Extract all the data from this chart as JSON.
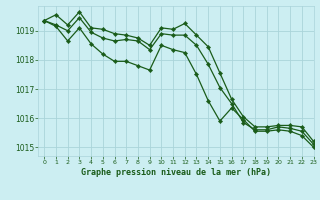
{
  "title": "Graphe pression niveau de la mer (hPa)",
  "bg_color": "#cceef2",
  "grid_color": "#aad4da",
  "line_color": "#1a5c1a",
  "xlim": [
    -0.5,
    23
  ],
  "ylim": [
    1014.7,
    1019.85
  ],
  "yticks": [
    1015,
    1016,
    1017,
    1018,
    1019
  ],
  "xticks": [
    0,
    1,
    2,
    3,
    4,
    5,
    6,
    7,
    8,
    9,
    10,
    11,
    12,
    13,
    14,
    15,
    16,
    17,
    18,
    19,
    20,
    21,
    22,
    23
  ],
  "series1_x": [
    0,
    1,
    2,
    3,
    4,
    5,
    6,
    7,
    8,
    9,
    10,
    11,
    12,
    13,
    14,
    15,
    16,
    17,
    18,
    19,
    20,
    21,
    22,
    23
  ],
  "series1_y": [
    1019.35,
    1019.55,
    1019.2,
    1019.65,
    1019.1,
    1019.05,
    1018.9,
    1018.85,
    1018.75,
    1018.5,
    1019.1,
    1019.05,
    1019.25,
    1018.85,
    1018.45,
    1017.55,
    1016.65,
    1016.05,
    1015.7,
    1015.7,
    1015.75,
    1015.75,
    1015.7,
    1015.2
  ],
  "series2_x": [
    0,
    1,
    2,
    3,
    4,
    5,
    6,
    7,
    8,
    9,
    10,
    11,
    12,
    13,
    14,
    15,
    16,
    17,
    18,
    19,
    20,
    21,
    22,
    23
  ],
  "series2_y": [
    1019.35,
    1019.2,
    1019.0,
    1019.45,
    1018.95,
    1018.75,
    1018.65,
    1018.7,
    1018.65,
    1018.35,
    1018.9,
    1018.85,
    1018.85,
    1018.5,
    1017.85,
    1017.05,
    1016.5,
    1015.85,
    1015.6,
    1015.6,
    1015.7,
    1015.65,
    1015.55,
    1015.1
  ],
  "series3_x": [
    0,
    1,
    2,
    3,
    4,
    5,
    6,
    7,
    8,
    9,
    10,
    11,
    12,
    13,
    14,
    15,
    16,
    17,
    18,
    19,
    20,
    21,
    22,
    23
  ],
  "series3_y": [
    1019.35,
    1019.15,
    1018.65,
    1019.1,
    1018.55,
    1018.2,
    1017.95,
    1017.95,
    1017.8,
    1017.65,
    1018.5,
    1018.35,
    1018.25,
    1017.5,
    1016.6,
    1015.9,
    1016.35,
    1015.95,
    1015.55,
    1015.55,
    1015.6,
    1015.55,
    1015.4,
    1015.0
  ]
}
